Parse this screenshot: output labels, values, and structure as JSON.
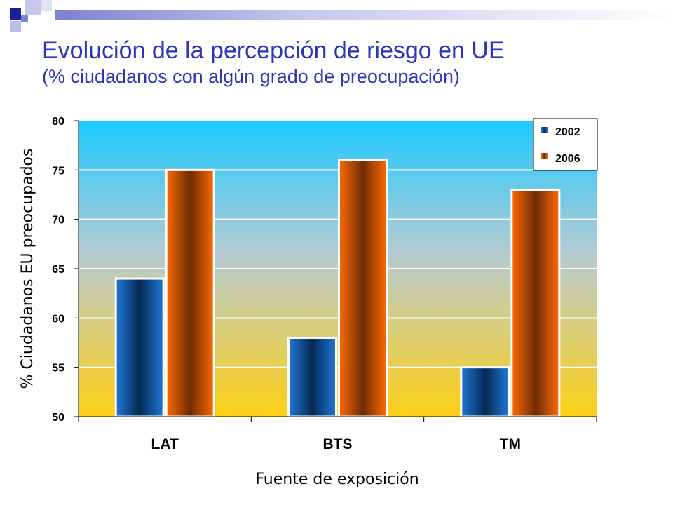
{
  "slide": {
    "title": "Evolución de la percepción de riesgo en UE",
    "subtitle": "(% ciudadanos con algún grado de preocupación)"
  },
  "colors": {
    "title": "#2c35b8",
    "deco_dark": "#1a1f9a",
    "deco_light": "#b9bde8",
    "series_2002": "#0a4a8c",
    "series_2006": "#e05a00",
    "plot_top": "#1fc8ff",
    "plot_bottom": "#ffd21a"
  },
  "chart_data": {
    "type": "bar",
    "categories": [
      "LAT",
      "BTS",
      "TM"
    ],
    "series": [
      {
        "name": "2002",
        "values": [
          64,
          58,
          55
        ]
      },
      {
        "name": "2006",
        "values": [
          75,
          76,
          73
        ]
      }
    ],
    "xlabel": "Fuente de exposición",
    "ylabel": "% Ciudadanos EU preocupados",
    "ylim": [
      50,
      80
    ],
    "yticks": [
      50,
      55,
      60,
      65,
      70,
      75,
      80
    ],
    "grid": true,
    "legend_position": "top-right"
  }
}
